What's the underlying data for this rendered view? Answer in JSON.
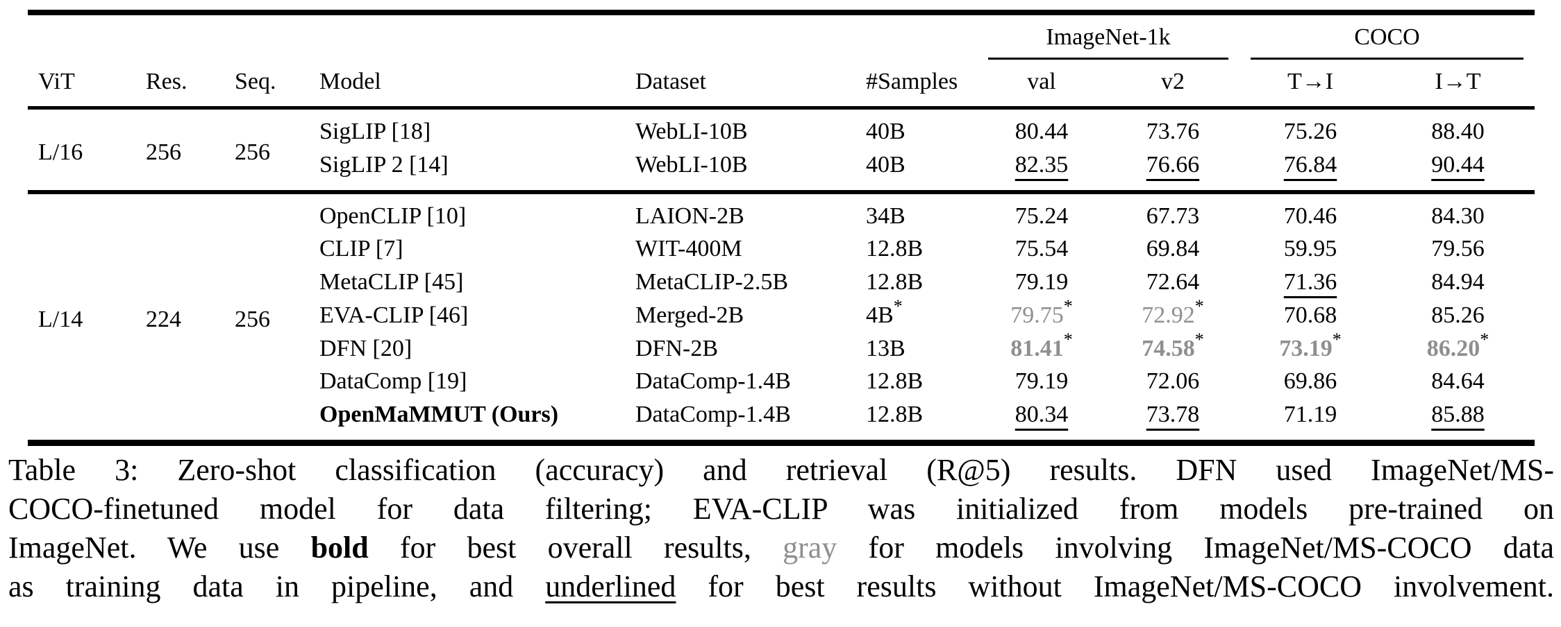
{
  "colors": {
    "text": "#000000",
    "involved_gray": "#8f8f8f",
    "background": "#ffffff"
  },
  "table": {
    "header": {
      "groups": [
        {
          "label": "ImageNet-1k",
          "spans": [
            "val",
            "v2"
          ]
        },
        {
          "label": "COCO",
          "spans": [
            "T→I",
            "I→T"
          ]
        }
      ],
      "columns": [
        "ViT",
        "Res.",
        "Seq.",
        "Model",
        "Dataset",
        "#Samples",
        "val",
        "v2",
        "T→I",
        "I→T"
      ]
    },
    "groups": [
      {
        "vit": "L/16",
        "res": "256",
        "seq": "256",
        "rows": [
          {
            "model": "SigLIP [18]",
            "dataset": "WebLI-10B",
            "samples": {
              "v": "40B"
            },
            "metrics": [
              {
                "v": "80.44"
              },
              {
                "v": "73.76"
              },
              {
                "v": "75.26"
              },
              {
                "v": "88.40"
              }
            ]
          },
          {
            "model": "SigLIP 2 [14]",
            "dataset": "WebLI-10B",
            "samples": {
              "v": "40B"
            },
            "metrics": [
              {
                "v": "82.35",
                "underline": true
              },
              {
                "v": "76.66",
                "underline": true
              },
              {
                "v": "76.84",
                "underline": true
              },
              {
                "v": "90.44",
                "underline": true
              }
            ]
          }
        ]
      },
      {
        "vit": "L/14",
        "res": "224",
        "seq": "256",
        "rows": [
          {
            "model": "OpenCLIP [10]",
            "dataset": "LAION-2B",
            "samples": {
              "v": "34B"
            },
            "metrics": [
              {
                "v": "75.24"
              },
              {
                "v": "67.73"
              },
              {
                "v": "70.46"
              },
              {
                "v": "84.30"
              }
            ]
          },
          {
            "model": "CLIP [7]",
            "dataset": "WIT-400M",
            "samples": {
              "v": "12.8B"
            },
            "metrics": [
              {
                "v": "75.54"
              },
              {
                "v": "69.84"
              },
              {
                "v": "59.95"
              },
              {
                "v": "79.56"
              }
            ]
          },
          {
            "model": "MetaCLIP [45]",
            "dataset": "MetaCLIP-2.5B",
            "samples": {
              "v": "12.8B"
            },
            "metrics": [
              {
                "v": "79.19"
              },
              {
                "v": "72.64"
              },
              {
                "v": "71.36",
                "underline": true
              },
              {
                "v": "84.94"
              }
            ]
          },
          {
            "model": "EVA-CLIP [46]",
            "dataset": "Merged-2B",
            "samples": {
              "v": "4B",
              "star": true
            },
            "metrics": [
              {
                "v": "79.75",
                "gray": true,
                "star": true
              },
              {
                "v": "72.92",
                "gray": true,
                "star": true
              },
              {
                "v": "70.68"
              },
              {
                "v": "85.26"
              }
            ]
          },
          {
            "model": "DFN [20]",
            "dataset": "DFN-2B",
            "samples": {
              "v": "13B"
            },
            "metrics": [
              {
                "v": "81.41",
                "gray": true,
                "bold": true,
                "star": true
              },
              {
                "v": "74.58",
                "gray": true,
                "bold": true,
                "star": true
              },
              {
                "v": "73.19",
                "gray": true,
                "bold": true,
                "star": true
              },
              {
                "v": "86.20",
                "gray": true,
                "bold": true,
                "star": true
              }
            ]
          },
          {
            "model": "DataComp [19]",
            "dataset": "DataComp-1.4B",
            "samples": {
              "v": "12.8B"
            },
            "metrics": [
              {
                "v": "79.19"
              },
              {
                "v": "72.06"
              },
              {
                "v": "69.86"
              },
              {
                "v": "84.64"
              }
            ]
          },
          {
            "model": "OpenMaMMUT (Ours)",
            "model_bold": true,
            "dataset": "DataComp-1.4B",
            "samples": {
              "v": "12.8B"
            },
            "metrics": [
              {
                "v": "80.34",
                "underline": true
              },
              {
                "v": "73.78",
                "underline": true
              },
              {
                "v": "71.19"
              },
              {
                "v": "85.88",
                "underline": true
              }
            ]
          }
        ]
      }
    ]
  },
  "caption": {
    "lines": [
      [
        {
          "t": "Table 3: Zero-shot classification (accuracy) and retrieval (R@5) results. DFN used ImageNet/MS-"
        }
      ],
      [
        {
          "t": "COCO-finetuned model for data filtering; EVA-CLIP was initialized from models pre-trained on"
        }
      ],
      [
        {
          "t": "ImageNet. We use "
        },
        {
          "t": "bold",
          "style": "bold"
        },
        {
          "t": " for best overall results, "
        },
        {
          "t": "gray",
          "style": "gray"
        },
        {
          "t": " for models involving ImageNet/MS-COCO data"
        }
      ],
      [
        {
          "t": "as training data in pipeline, and "
        },
        {
          "t": "underlined",
          "style": "underline"
        },
        {
          "t": " for best results without ImageNet/MS-COCO involvement."
        }
      ]
    ]
  }
}
